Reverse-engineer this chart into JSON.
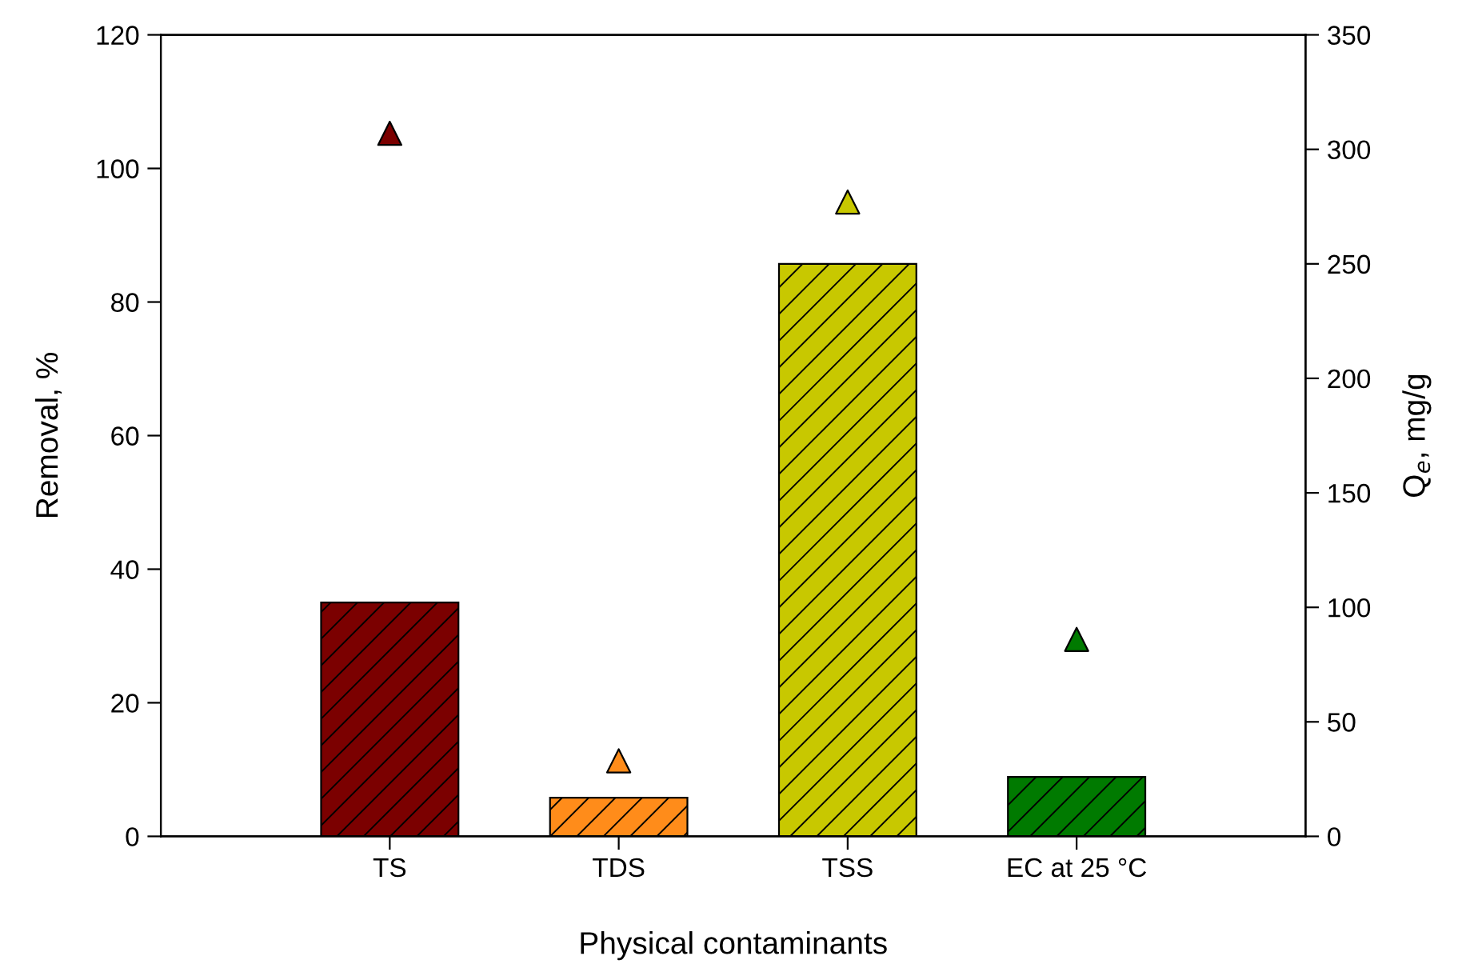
{
  "chart_data": {
    "type": "bar",
    "xlabel": "Physical contaminants",
    "ylabel": "Removal, %",
    "y2label": "Q$_{e}$, mg/g",
    "categories": [
      "TS",
      "TDS",
      "TSS",
      "EC at 25 °C"
    ],
    "series": [
      {
        "values": [
          35,
          5.8,
          85.7,
          8.9
        ],
        "colors": [
          "#7b0000",
          "#ff8c1a",
          "#c8c800",
          "#007a00"
        ]
      },
      {
        "type": "scatter",
        "axis": "y2",
        "marker": "triangle",
        "values": [
          307,
          33,
          277,
          86
        ],
        "colors": [
          "#7b0000",
          "#ff8c1a",
          "#c8c800",
          "#007a00"
        ]
      }
    ],
    "ylim": [
      0,
      120
    ],
    "yticks": [
      0,
      20,
      40,
      60,
      80,
      100,
      120
    ],
    "y2lim": [
      0,
      350
    ],
    "y2ticks": [
      0,
      50,
      100,
      150,
      200,
      250,
      300,
      350
    ],
    "grid": false,
    "legend": false
  }
}
